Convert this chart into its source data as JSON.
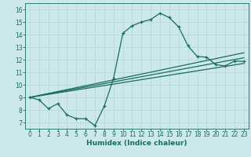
{
  "xlabel": "Humidex (Indice chaleur)",
  "ylabel": "",
  "bg_color": "#cce8ec",
  "grid_color": "#b8d8dc",
  "line_color": "#1a6b60",
  "xlim": [
    -0.5,
    23.5
  ],
  "ylim": [
    6.5,
    16.5
  ],
  "xticks": [
    0,
    1,
    2,
    3,
    4,
    5,
    6,
    7,
    8,
    9,
    10,
    11,
    12,
    13,
    14,
    15,
    16,
    17,
    18,
    19,
    20,
    21,
    22,
    23
  ],
  "yticks": [
    7,
    8,
    9,
    10,
    11,
    12,
    13,
    14,
    15,
    16
  ],
  "line1_x": [
    0,
    1,
    2,
    3,
    4,
    5,
    6,
    7,
    8,
    9,
    10,
    11,
    12,
    13,
    14,
    15,
    16,
    17,
    18,
    19,
    20,
    21,
    22,
    23
  ],
  "line1_y": [
    9.0,
    8.8,
    8.1,
    8.5,
    7.6,
    7.3,
    7.3,
    6.75,
    8.3,
    10.5,
    14.1,
    14.7,
    15.0,
    15.2,
    15.7,
    15.35,
    14.6,
    13.1,
    12.25,
    12.2,
    11.6,
    11.5,
    11.9,
    11.85
  ],
  "line2_x": [
    0,
    23
  ],
  "line2_y": [
    9.0,
    12.15
  ],
  "line3_x": [
    0,
    23
  ],
  "line3_y": [
    9.0,
    11.7
  ],
  "line4_x": [
    0,
    23
  ],
  "line4_y": [
    9.0,
    12.55
  ]
}
